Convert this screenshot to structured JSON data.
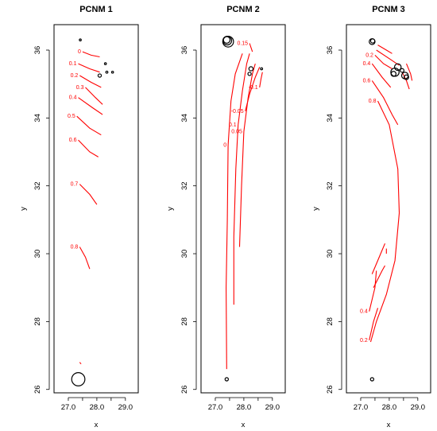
{
  "figure": {
    "colors": {
      "contour": "#ff0000",
      "circle": "#000000",
      "frame": "#000000",
      "background": "#ffffff"
    }
  },
  "chart_data": [
    {
      "type": "scatter",
      "title": "PCNM 1",
      "xlabel": "x",
      "ylabel": "y",
      "xlim": [
        26.5,
        29.45
      ],
      "ylim": [
        25.9,
        36.75
      ],
      "xticks": [
        "27.0",
        "28.0",
        "29.0"
      ],
      "yticks": [
        "26",
        "28",
        "30",
        "32",
        "34",
        "36"
      ],
      "xtick_values": [
        27.0,
        27.5,
        28.0,
        28.5,
        29.0
      ],
      "ytick_values": [
        26,
        28,
        30,
        32,
        34,
        36
      ],
      "contours": [
        {
          "label": "0",
          "points": [
            [
              27.5,
              35.95
            ],
            [
              27.8,
              35.85
            ],
            [
              28.1,
              35.8
            ]
          ]
        },
        {
          "label": "0.1",
          "points": [
            [
              27.35,
              35.6
            ],
            [
              27.75,
              35.45
            ],
            [
              28.1,
              35.35
            ]
          ]
        },
        {
          "label": "0.2",
          "points": [
            [
              27.4,
              35.25
            ],
            [
              27.8,
              35.05
            ],
            [
              28.15,
              34.9
            ]
          ]
        },
        {
          "label": "0.3",
          "points": [
            [
              27.6,
              34.9
            ],
            [
              27.95,
              34.6
            ],
            [
              28.2,
              34.4
            ]
          ]
        },
        {
          "label": "0.4",
          "points": [
            [
              27.35,
              34.6
            ],
            [
              27.85,
              34.3
            ],
            [
              28.2,
              34.1
            ]
          ]
        },
        {
          "label": "0.5",
          "points": [
            [
              27.3,
              34.05
            ],
            [
              27.75,
              33.7
            ],
            [
              28.15,
              33.5
            ]
          ]
        },
        {
          "label": "0.6",
          "points": [
            [
              27.35,
              33.35
            ],
            [
              27.75,
              33.0
            ],
            [
              28.05,
              32.85
            ]
          ]
        },
        {
          "label": "0.7",
          "points": [
            [
              27.4,
              32.05
            ],
            [
              27.75,
              31.75
            ],
            [
              28.0,
              31.45
            ]
          ]
        },
        {
          "label": "0.8",
          "points": [
            [
              27.4,
              30.2
            ],
            [
              27.6,
              29.9
            ],
            [
              27.75,
              29.55
            ]
          ]
        },
        {
          "label": "",
          "points": [
            [
              27.4,
              26.8
            ],
            [
              27.45,
              26.75
            ]
          ]
        }
      ],
      "circles": [
        {
          "x": 27.35,
          "y": 26.3,
          "size": 3.2
        },
        {
          "x": 28.1,
          "y": 35.25,
          "size": 0.8
        },
        {
          "x": 28.35,
          "y": 35.35,
          "size": 0.5
        },
        {
          "x": 27.42,
          "y": 36.3,
          "size": 0.3
        },
        {
          "x": 28.55,
          "y": 35.35,
          "size": 0.3
        },
        {
          "x": 28.3,
          "y": 35.6,
          "size": 0.3
        }
      ]
    },
    {
      "type": "scatter",
      "title": "PCNM 2",
      "xlabel": "x",
      "ylabel": "y",
      "xlim": [
        26.5,
        29.45
      ],
      "ylim": [
        25.9,
        36.75
      ],
      "xticks": [
        "27.0",
        "28.0",
        "29.0"
      ],
      "yticks": [
        "26",
        "28",
        "30",
        "32",
        "34",
        "36"
      ],
      "xtick_values": [
        27.0,
        27.5,
        28.0,
        28.5,
        29.0
      ],
      "ytick_values": [
        26,
        28,
        30,
        32,
        34,
        36
      ],
      "contours": [
        {
          "label": "",
          "points": [
            [
              27.4,
              26.6
            ],
            [
              27.38,
              29.0
            ],
            [
              27.42,
              31.0
            ],
            [
              27.45,
              33.2
            ]
          ]
        },
        {
          "label": "0",
          "points": [
            [
              27.45,
              33.2
            ],
            [
              27.55,
              34.5
            ],
            [
              27.7,
              35.3
            ],
            [
              27.95,
              35.9
            ]
          ]
        },
        {
          "label": "",
          "points": [
            [
              27.65,
              28.5
            ],
            [
              27.65,
              30.5
            ],
            [
              27.72,
              32.5
            ],
            [
              27.8,
              33.8
            ]
          ]
        },
        {
          "label": "0.1",
          "points": [
            [
              27.8,
              33.8
            ],
            [
              27.95,
              34.8
            ],
            [
              28.1,
              35.6
            ],
            [
              28.2,
              35.9
            ]
          ]
        },
        {
          "label": "",
          "points": [
            [
              27.85,
              30.2
            ],
            [
              27.92,
              32.0
            ],
            [
              28.0,
              33.6
            ]
          ]
        },
        {
          "label": "0.05",
          "points": [
            [
              28.0,
              33.6
            ],
            [
              28.15,
              34.6
            ],
            [
              28.3,
              35.3
            ],
            [
              28.4,
              35.6
            ]
          ]
        },
        {
          "label": "0.15",
          "points": [
            [
              28.2,
              36.2
            ],
            [
              28.3,
              35.95
            ]
          ]
        },
        {
          "label": "-0.05",
          "points": [
            [
              28.05,
              34.2
            ],
            [
              28.2,
              34.7
            ],
            [
              28.4,
              35.2
            ],
            [
              28.55,
              35.5
            ]
          ]
        },
        {
          "label": "-0.1",
          "points": [
            [
              28.55,
              34.9
            ],
            [
              28.6,
              35.15
            ],
            [
              28.65,
              35.35
            ]
          ]
        }
      ],
      "circles": [
        {
          "x": 27.45,
          "y": 36.25,
          "size": 2.6
        },
        {
          "x": 27.42,
          "y": 36.28,
          "size": 2.1
        },
        {
          "x": 27.4,
          "y": 36.3,
          "size": 1.6
        },
        {
          "x": 28.25,
          "y": 35.45,
          "size": 1.0
        },
        {
          "x": 28.2,
          "y": 35.3,
          "size": 0.8
        },
        {
          "x": 28.62,
          "y": 35.45,
          "size": 0.5
        },
        {
          "x": 27.4,
          "y": 26.3,
          "size": 0.8
        }
      ]
    },
    {
      "type": "scatter",
      "title": "PCNM 3",
      "xlabel": "x",
      "ylabel": "y",
      "xlim": [
        26.5,
        29.45
      ],
      "ylim": [
        25.9,
        36.75
      ],
      "xticks": [
        "27.0",
        "28.0",
        "29.0"
      ],
      "yticks": [
        "26",
        "28",
        "30",
        "32",
        "34",
        "36"
      ],
      "xtick_values": [
        27.0,
        27.5,
        28.0,
        28.5,
        29.0
      ],
      "ytick_values": [
        26,
        28,
        30,
        32,
        34,
        36
      ],
      "contours": [
        {
          "label": "",
          "points": [
            [
              27.6,
              36.15
            ],
            [
              27.9,
              36.0
            ],
            [
              28.1,
              35.9
            ]
          ]
        },
        {
          "label": "0.2",
          "points": [
            [
              27.5,
              35.85
            ],
            [
              27.8,
              35.6
            ],
            [
              28.1,
              35.45
            ]
          ]
        },
        {
          "label": "",
          "points": [
            [
              27.55,
              36.0
            ],
            [
              28.0,
              35.75
            ],
            [
              28.35,
              35.55
            ]
          ]
        },
        {
          "label": "0.4",
          "points": [
            [
              27.4,
              35.6
            ],
            [
              27.75,
              35.2
            ],
            [
              28.05,
              34.9
            ]
          ]
        },
        {
          "label": "0.6",
          "points": [
            [
              27.4,
              35.1
            ],
            [
              27.8,
              34.6
            ],
            [
              28.1,
              34.1
            ],
            [
              28.3,
              33.8
            ]
          ]
        },
        {
          "label": "0.8",
          "points": [
            [
              27.6,
              34.5
            ],
            [
              28.0,
              33.8
            ],
            [
              28.3,
              32.5
            ],
            [
              28.35,
              31.2
            ],
            [
              28.2,
              29.8
            ],
            [
              27.9,
              28.8
            ],
            [
              27.55,
              28.0
            ],
            [
              27.35,
              27.4
            ]
          ]
        },
        {
          "label": "",
          "points": [
            [
              27.4,
              29.4
            ],
            [
              27.7,
              30.0
            ],
            [
              27.85,
              30.3
            ]
          ]
        },
        {
          "label": "",
          "points": [
            [
              27.45,
              29.0
            ],
            [
              27.75,
              29.5
            ],
            [
              27.85,
              29.65
            ]
          ]
        },
        {
          "label": "0.4",
          "points": [
            [
              27.3,
              28.3
            ],
            [
              27.5,
              29.0
            ],
            [
              27.55,
              29.5
            ]
          ]
        },
        {
          "label": "0.2",
          "points": [
            [
              27.3,
              27.45
            ],
            [
              27.45,
              28.0
            ],
            [
              27.6,
              28.4
            ]
          ]
        },
        {
          "label": "",
          "points": [
            [
              27.9,
              30.0
            ],
            [
              27.9,
              30.15
            ]
          ]
        },
        {
          "label": "",
          "points": [
            [
              28.45,
              35.35
            ],
            [
              28.6,
              35.1
            ],
            [
              28.7,
              34.85
            ]
          ]
        },
        {
          "label": "",
          "points": [
            [
              28.6,
              35.6
            ],
            [
              28.75,
              35.3
            ],
            [
              28.8,
              35.1
            ]
          ]
        }
      ],
      "circles": [
        {
          "x": 27.4,
          "y": 36.25,
          "size": 1.4
        },
        {
          "x": 27.42,
          "y": 36.27,
          "size": 1.0
        },
        {
          "x": 28.2,
          "y": 35.35,
          "size": 2.0
        },
        {
          "x": 28.3,
          "y": 35.5,
          "size": 1.6
        },
        {
          "x": 28.15,
          "y": 35.3,
          "size": 1.2
        },
        {
          "x": 28.55,
          "y": 35.25,
          "size": 1.6
        },
        {
          "x": 28.6,
          "y": 35.2,
          "size": 1.1
        },
        {
          "x": 28.45,
          "y": 35.4,
          "size": 0.9
        },
        {
          "x": 27.4,
          "y": 26.3,
          "size": 0.8
        }
      ]
    }
  ]
}
